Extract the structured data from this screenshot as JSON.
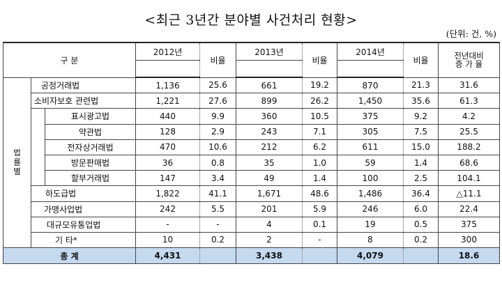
{
  "title": "<최근 3년간 분야별 사건처리 현황>",
  "unit": "(단위: 건, %)",
  "header": {
    "category": "구   분",
    "y2012": "2012년",
    "y2013": "2013년",
    "y2014": "2014년",
    "ratio": "비율",
    "yoy_line1": "전년대비",
    "yoy_line2": "증 가 율"
  },
  "group_label": "법률별",
  "rows": [
    {
      "label": "공정거래법",
      "c2012": "1,136",
      "r2012": "25.6",
      "c2013": "661",
      "r2013": "19.2",
      "c2014": "870",
      "r2014": "21.3",
      "yoy": "31.6"
    },
    {
      "label": "소비자보호 관련법",
      "c2012": "1,221",
      "r2012": "27.6",
      "c2013": "899",
      "r2013": "26.2",
      "c2014": "1,450",
      "r2014": "35.6",
      "yoy": "61.3"
    },
    {
      "label": "표시광고법",
      "c2012": "440",
      "r2012": "9.9",
      "c2013": "360",
      "r2013": "10.5",
      "c2014": "375",
      "r2014": "9.2",
      "yoy": "4.2"
    },
    {
      "label": "약관법",
      "c2012": "128",
      "r2012": "2.9",
      "c2013": "243",
      "r2013": "7.1",
      "c2014": "305",
      "r2014": "7.5",
      "yoy": "25.5"
    },
    {
      "label": "전자상거래법",
      "c2012": "470",
      "r2012": "10.6",
      "c2013": "212",
      "r2013": "6.2",
      "c2014": "611",
      "r2014": "15.0",
      "yoy": "188.2"
    },
    {
      "label": "방문판매법",
      "c2012": "36",
      "r2012": "0.8",
      "c2013": "35",
      "r2013": "1.0",
      "c2014": "59",
      "r2014": "1.4",
      "yoy": "68.6"
    },
    {
      "label": "할부거래법",
      "c2012": "147",
      "r2012": "3.4",
      "c2013": "49",
      "r2013": "1.4",
      "c2014": "100",
      "r2014": "2.5",
      "yoy": "104.1"
    },
    {
      "label": "하도급법",
      "c2012": "1,822",
      "r2012": "41.1",
      "c2013": "1,671",
      "r2013": "48.6",
      "c2014": "1,486",
      "r2014": "36.4",
      "yoy": "△11.1"
    },
    {
      "label": "가맹사업법",
      "c2012": "242",
      "r2012": "5.5",
      "c2013": "201",
      "r2013": "5.9",
      "c2014": "246",
      "r2014": "6.0",
      "yoy": "22.4"
    },
    {
      "label": "대규모유통업법",
      "c2012": "-",
      "r2012": "-",
      "c2013": "4",
      "r2013": "0.1",
      "c2014": "19",
      "r2014": "0.5",
      "yoy": "375"
    },
    {
      "label": "기   타*",
      "c2012": "10",
      "r2012": "0.2",
      "c2013": "2",
      "r2013": "-",
      "c2014": "8",
      "r2014": "0.2",
      "yoy": "300"
    }
  ],
  "total": {
    "label": "총   계",
    "c2012": "4,431",
    "c2013": "3,438",
    "c2014": "4,079",
    "yoy": "18.6"
  }
}
